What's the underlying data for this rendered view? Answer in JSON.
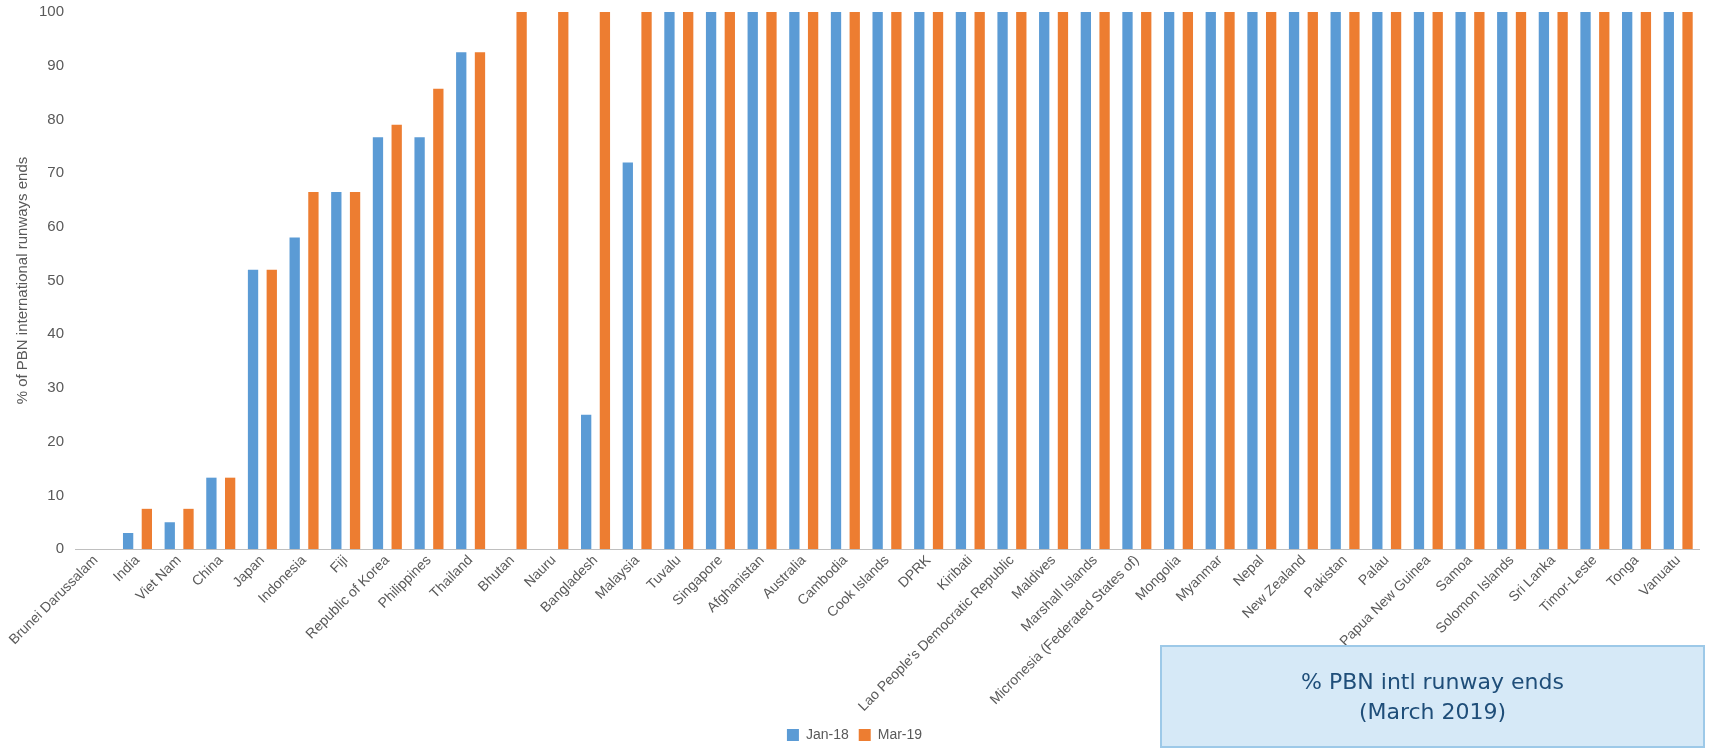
{
  "chart_data": {
    "type": "bar",
    "ylabel": "% of PBN international runways ends",
    "categories": [
      "Brunei Darussalam",
      "India",
      "Viet Nam",
      "China",
      "Japan",
      "Indonesia",
      "Fiji",
      "Republic of Korea",
      "Philippines",
      "Thailand",
      "Bhutan",
      "Nauru",
      "Bangladesh",
      "Malaysia",
      "Tuvalu",
      "Singapore",
      "Afghanistan",
      "Australia",
      "Cambodia",
      "Cook Islands",
      "DPRK",
      "Kiribati",
      "Lao People's Democratic Republic",
      "Maldives",
      "Marshall Islands",
      "Micronesia (Federated States of)",
      "Mongolia",
      "Myanmar",
      "Nepal",
      "New Zealand",
      "Pakistan",
      "Palau",
      "Papua New Guinea",
      "Samoa",
      "Solomon Islands",
      "Sri Lanka",
      "Timor-Leste",
      "Tonga",
      "Vanuatu"
    ],
    "series": [
      {
        "name": "Jan-18",
        "color": "#5b9bd5",
        "values": [
          0,
          3,
          5,
          13.3,
          52,
          58,
          66.5,
          76.7,
          76.7,
          92.5,
          0,
          0,
          25,
          72,
          100,
          100,
          100,
          100,
          100,
          100,
          100,
          100,
          100,
          100,
          100,
          100,
          100,
          100,
          100,
          100,
          100,
          100,
          100,
          100,
          100,
          100,
          100,
          100,
          100
        ]
      },
      {
        "name": "Mar-19",
        "color": "#ed7d31",
        "values": [
          0,
          7.5,
          7.5,
          13.3,
          52,
          66.5,
          66.5,
          79,
          85.7,
          92.5,
          100,
          100,
          100,
          100,
          100,
          100,
          100,
          100,
          100,
          100,
          100,
          100,
          100,
          100,
          100,
          100,
          100,
          100,
          100,
          100,
          100,
          100,
          100,
          100,
          100,
          100,
          100,
          100,
          100
        ]
      }
    ],
    "ylim": [
      0,
      100
    ],
    "yticks": [
      0,
      10,
      20,
      30,
      40,
      50,
      60,
      70,
      80,
      90,
      100
    ],
    "grid": false,
    "legend": "bottom",
    "annotations": [
      "% PBN intl runway ends",
      "(March 2019)"
    ]
  }
}
